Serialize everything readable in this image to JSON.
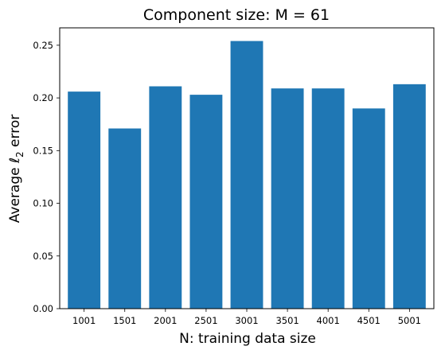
{
  "chart_data": {
    "type": "bar",
    "title": "Component size: M = 61",
    "xlabel": "N: training data size",
    "ylabel_prefix": "Average ",
    "ylabel_symbol": "ℓ",
    "ylabel_subscript": "2",
    "ylabel_suffix": " error",
    "categories": [
      "1001",
      "1501",
      "2001",
      "2501",
      "3001",
      "3501",
      "4001",
      "4501",
      "5001"
    ],
    "values": [
      0.206,
      0.171,
      0.211,
      0.203,
      0.254,
      0.209,
      0.209,
      0.19,
      0.213
    ],
    "ylim": [
      0,
      0.2665
    ],
    "yticks": [
      0.0,
      0.05,
      0.1,
      0.15,
      0.2,
      0.25
    ],
    "ytick_labels": [
      "0.00",
      "0.05",
      "0.10",
      "0.15",
      "0.20",
      "0.25"
    ],
    "grid": false,
    "bar_color": "#1f77b4"
  }
}
